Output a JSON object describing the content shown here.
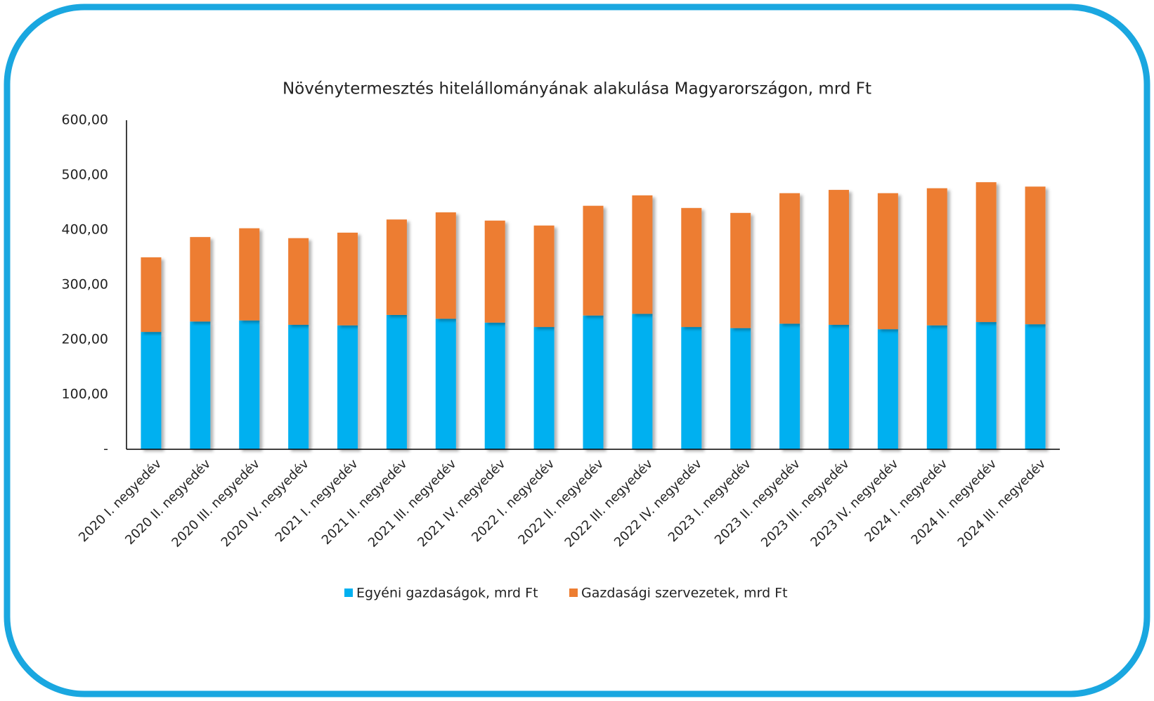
{
  "chart_data": {
    "type": "stacked_bar",
    "title": "Növénytermesztés hitelállományának alakulása Magyarországon, mrd Ft",
    "categories": [
      "2020 I. negyedév",
      "2020 II. negyedév",
      "2020 III. negyedév",
      "2020 IV. negyedév",
      "2021 I. negyedév",
      "2021 II. negyedév",
      "2021 III. negyedév",
      "2021 IV. negyedév",
      "2022 I. negyedév",
      "2022 II. negyedév",
      "2022 III. negyedév",
      "2022 IV. negyedév",
      "2023 I. negyedév",
      "2023 II. negyedév",
      "2023 III. negyedév",
      "2023 IV. negyedév",
      "2024 I. negyedév",
      "2024 II. negyedév",
      "2024 III. negyedév"
    ],
    "series": [
      {
        "name": "Egyéni gazdaságok, mrd Ft",
        "color": "#00b0f0",
        "values": [
          214,
          233,
          235,
          227,
          226,
          245,
          238,
          231,
          223,
          244,
          247,
          223,
          221,
          229,
          227,
          219,
          226,
          232,
          228
        ]
      },
      {
        "name": "Gazdasági szervezetek, mrd Ft",
        "color": "#ed7d31",
        "values": [
          136,
          154,
          168,
          158,
          169,
          174,
          194,
          186,
          185,
          200,
          216,
          217,
          210,
          238,
          246,
          248,
          250,
          255,
          251
        ]
      }
    ],
    "ylim": [
      0,
      600
    ],
    "yticks": [
      {
        "value": 0,
        "label": "-"
      },
      {
        "value": 100,
        "label": "100,00"
      },
      {
        "value": 200,
        "label": "200,00"
      },
      {
        "value": 300,
        "label": "300,00"
      },
      {
        "value": 400,
        "label": "400,00"
      },
      {
        "value": 500,
        "label": "500,00"
      },
      {
        "value": 600,
        "label": "600,00"
      }
    ],
    "grid": false,
    "legend": "bottom"
  }
}
